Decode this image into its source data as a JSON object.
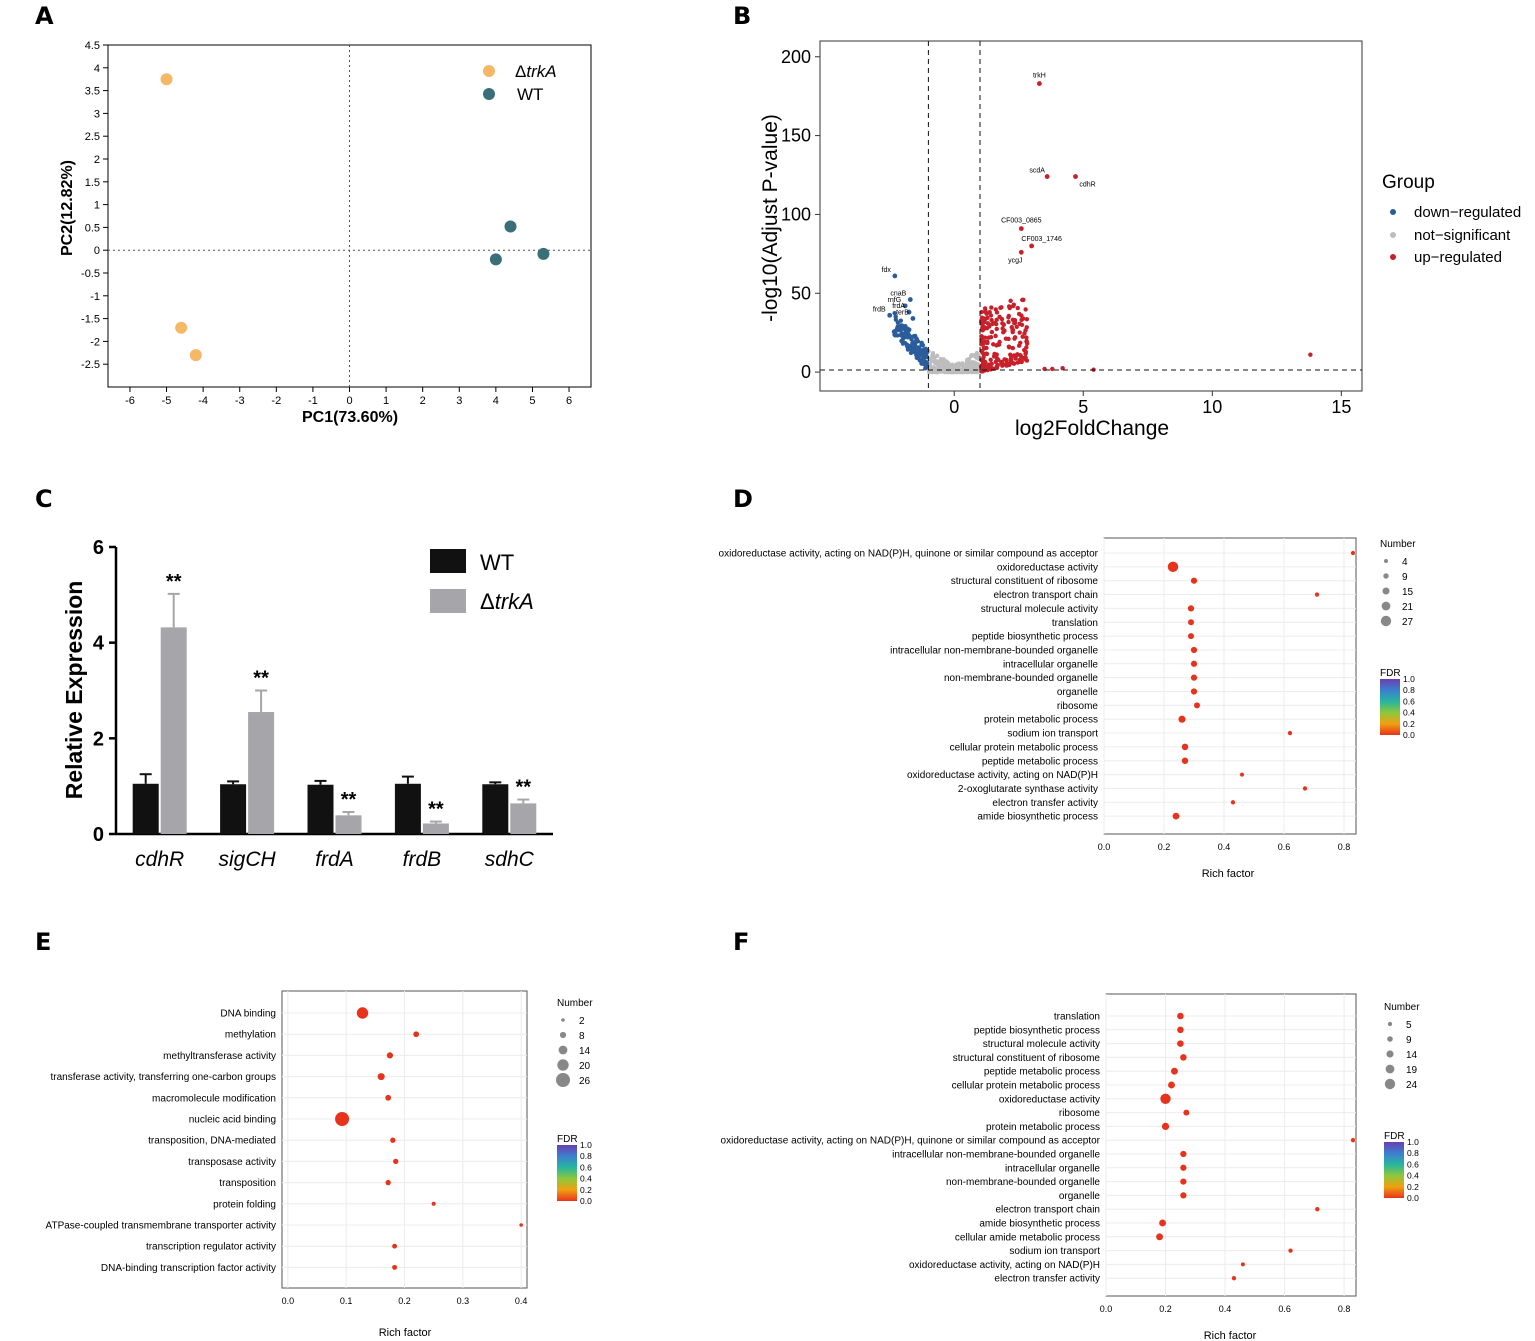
{
  "panels": [
    "A",
    "B",
    "C",
    "D",
    "E",
    "F"
  ],
  "panelA": {
    "type": "scatter",
    "xlabel": "PC1(73.60%)",
    "ylabel": "PC2(12.82%)",
    "xlim": [
      -6.6,
      6.6
    ],
    "ylim": [
      -3.0,
      4.5
    ],
    "xticks": [
      "-6",
      "-5",
      "-4",
      "-3",
      "-2",
      "-1",
      "0",
      "1",
      "2",
      "3",
      "4",
      "5",
      "6"
    ],
    "yticks": [
      "4.5",
      "4",
      "3.5",
      "3",
      "2.5",
      "2",
      "1.5",
      "1",
      "0.5",
      "0",
      "-0.5",
      "-1",
      "-1.5",
      "-2",
      "-2.5"
    ],
    "series": [
      {
        "name": "ΔtrkA",
        "color": "#f5b866",
        "points": [
          [
            -5.0,
            3.75
          ],
          [
            -4.6,
            -1.7
          ],
          [
            -4.2,
            -2.3
          ]
        ]
      },
      {
        "name": "WT",
        "color": "#3a6e78",
        "points": [
          [
            4.4,
            0.52
          ],
          [
            4.0,
            -0.2
          ],
          [
            5.3,
            -0.08
          ]
        ]
      }
    ],
    "legend": {
      "delta": "Δ",
      "trkA": "trkA",
      "wt": "WT"
    }
  },
  "panelB": {
    "type": "scatter",
    "xlabel": "log2FoldChange",
    "ylabel": "-log10(Adjust P-value)",
    "xlim": [
      -5.2,
      15.8
    ],
    "ylim": [
      -12,
      210
    ],
    "xticks": [
      "0",
      "5",
      "10",
      "15"
    ],
    "yticks": [
      "0",
      "50",
      "100",
      "150",
      "200"
    ],
    "legend_title": "Group",
    "legend_items": [
      "down−regulated",
      "not−significant",
      "up−regulated"
    ],
    "colors": {
      "down": "#2b5c9c",
      "ns": "#bdbdbd",
      "up": "#c8202a"
    },
    "gene_labels": [
      {
        "name": "trkH",
        "x": 3.3,
        "y": 183,
        "group": "up"
      },
      {
        "name": "scdA",
        "x": 3.6,
        "y": 124,
        "group": "up"
      },
      {
        "name": "cdhR",
        "x": 4.7,
        "y": 124,
        "group": "up"
      },
      {
        "name": "CF003_0865",
        "x": 2.6,
        "y": 91,
        "group": "up"
      },
      {
        "name": "CF003_1746",
        "x": 3.0,
        "y": 80,
        "group": "up"
      },
      {
        "name": "ycgJ",
        "x": 2.6,
        "y": 76,
        "group": "up"
      },
      {
        "name": "fdx",
        "x": -2.3,
        "y": 61,
        "group": "down"
      },
      {
        "name": "cnaB",
        "x": -1.7,
        "y": 46,
        "group": "down"
      },
      {
        "name": "rnfG",
        "x": -1.9,
        "y": 42,
        "group": "down"
      },
      {
        "name": "frdA",
        "x": -1.75,
        "y": 38,
        "group": "down"
      },
      {
        "name": "frdB",
        "x": -2.5,
        "y": 36,
        "group": "down"
      },
      {
        "name": "terB",
        "x": -1.6,
        "y": 34,
        "group": "down"
      }
    ],
    "extra_up": [
      [
        13.8,
        11
      ],
      [
        5.4,
        1.5
      ],
      [
        4.2,
        2.5
      ],
      [
        3.8,
        2
      ],
      [
        3.5,
        2
      ]
    ]
  },
  "panelC": {
    "type": "bar",
    "ylabel": "Relative Expression",
    "ylim": [
      0,
      6
    ],
    "yticks": [
      "0",
      "2",
      "4",
      "6"
    ],
    "categories": [
      "cdhR",
      "sigCH",
      "frdA",
      "frdB",
      "sdhC"
    ],
    "series": [
      {
        "name": "WT",
        "color": "#111111",
        "values": [
          1.05,
          1.04,
          1.03,
          1.05,
          1.04
        ],
        "errors": [
          0.2,
          0.06,
          0.08,
          0.15,
          0.04
        ]
      },
      {
        "name": "ΔtrkA",
        "color": "#a6a6aa",
        "values": [
          4.32,
          2.55,
          0.39,
          0.22,
          0.64
        ],
        "errors": [
          0.7,
          0.45,
          0.07,
          0.04,
          0.08
        ]
      }
    ],
    "significance": [
      "**",
      "**",
      "**",
      "**",
      "**"
    ],
    "legend": {
      "wt": "WT",
      "delta": "Δ",
      "trkA": "trkA"
    }
  },
  "panelD": {
    "type": "scatter",
    "xlabel": "Rich factor",
    "xlim": [
      0,
      0.84
    ],
    "xticks": [
      "0.0",
      "0.2",
      "0.4",
      "0.6",
      "0.8"
    ],
    "terms": [
      "oxidoreductase activity, acting on NAD(P)H, quinone or similar compound as acceptor",
      "oxidoreductase activity",
      "structural constituent of ribosome",
      "electron transport chain",
      "structural molecule activity",
      "translation",
      "peptide biosynthetic process",
      "intracellular non-membrane-bounded organelle",
      "intracellular organelle",
      "non-membrane-bounded organelle",
      "organelle",
      "ribosome",
      "protein metabolic process",
      "sodium ion transport",
      "cellular protein metabolic process",
      "peptide metabolic process",
      "oxidoreductase activity, acting on NAD(P)H",
      "2-oxoglutarate synthase activity",
      "electron transfer activity",
      "amide biosynthetic process"
    ],
    "rich_factor": [
      0.83,
      0.23,
      0.3,
      0.71,
      0.29,
      0.29,
      0.29,
      0.3,
      0.3,
      0.3,
      0.3,
      0.31,
      0.26,
      0.62,
      0.27,
      0.27,
      0.46,
      0.67,
      0.43,
      0.24
    ],
    "number": [
      5,
      27,
      12,
      5,
      12,
      11,
      11,
      12,
      12,
      12,
      12,
      11,
      15,
      5,
      13,
      13,
      4,
      5,
      5,
      14
    ],
    "size_legend_title": "Number",
    "size_legend": [
      "4",
      "9",
      "15",
      "21",
      "27"
    ],
    "color_legend_title": "FDR",
    "color_legend": [
      "1.0",
      "0.8",
      "0.6",
      "0.4",
      "0.2",
      "0.0"
    ]
  },
  "panelE": {
    "type": "scatter",
    "xlabel": "Rich factor",
    "xlim": [
      -0.01,
      0.41
    ],
    "xticks": [
      "0.0",
      "0.1",
      "0.2",
      "0.3",
      "0.4"
    ],
    "terms": [
      "DNA binding",
      "methylation",
      "methyltransferase activity",
      "transferase activity, transferring one-carbon groups",
      "macromolecule modification",
      "nucleic acid binding",
      "transposition, DNA-mediated",
      "transposase activity",
      "transposition",
      "protein folding",
      "ATPase-coupled transmembrane transporter activity",
      "transcription regulator activity",
      "DNA-binding transcription factor activity"
    ],
    "rich_factor": [
      0.128,
      0.22,
      0.175,
      0.16,
      0.172,
      0.093,
      0.18,
      0.185,
      0.172,
      0.25,
      0.4,
      0.183,
      0.183
    ],
    "number": [
      20,
      7,
      8,
      10,
      7,
      26,
      6,
      6,
      6,
      3,
      2,
      5,
      5
    ],
    "size_legend_title": "Number",
    "size_legend": [
      "2",
      "8",
      "14",
      "20",
      "26"
    ],
    "color_legend_title": "FDR",
    "color_legend": [
      "1.0",
      "0.8",
      "0.6",
      "0.4",
      "0.2",
      "0.0"
    ]
  },
  "panelF": {
    "type": "scatter",
    "xlabel": "Rich factor",
    "xlim": [
      0,
      0.84
    ],
    "xticks": [
      "0.0",
      "0.2",
      "0.4",
      "0.6",
      "0.8"
    ],
    "terms": [
      "translation",
      "peptide biosynthetic process",
      "structural molecule activity",
      "structural constituent of ribosome",
      "peptide metabolic process",
      "cellular protein metabolic process",
      "oxidoreductase activity",
      "ribosome",
      "protein metabolic process",
      "oxidoreductase activity, acting on NAD(P)H, quinone or similar compound as acceptor",
      "intracellular non-membrane-bounded organelle",
      "intracellular organelle",
      "non-membrane-bounded organelle",
      "organelle",
      "electron transport chain",
      "amide biosynthetic process",
      "cellular amide metabolic process",
      "sodium ion transport",
      "oxidoreductase activity, acting on NAD(P)H",
      "electron transfer activity"
    ],
    "rich_factor": [
      0.25,
      0.25,
      0.25,
      0.26,
      0.23,
      0.22,
      0.2,
      0.27,
      0.2,
      0.83,
      0.26,
      0.26,
      0.26,
      0.26,
      0.71,
      0.19,
      0.18,
      0.62,
      0.46,
      0.43
    ],
    "number": [
      12,
      12,
      12,
      12,
      13,
      13,
      24,
      10,
      14,
      5,
      11,
      11,
      11,
      11,
      5,
      13,
      13,
      5,
      4,
      5
    ],
    "size_legend_title": "Number",
    "size_legend": [
      "5",
      "9",
      "14",
      "19",
      "24"
    ],
    "color_legend_title": "FDR",
    "color_legend": [
      "1.0",
      "0.8",
      "0.6",
      "0.4",
      "0.2",
      "0.0"
    ]
  }
}
